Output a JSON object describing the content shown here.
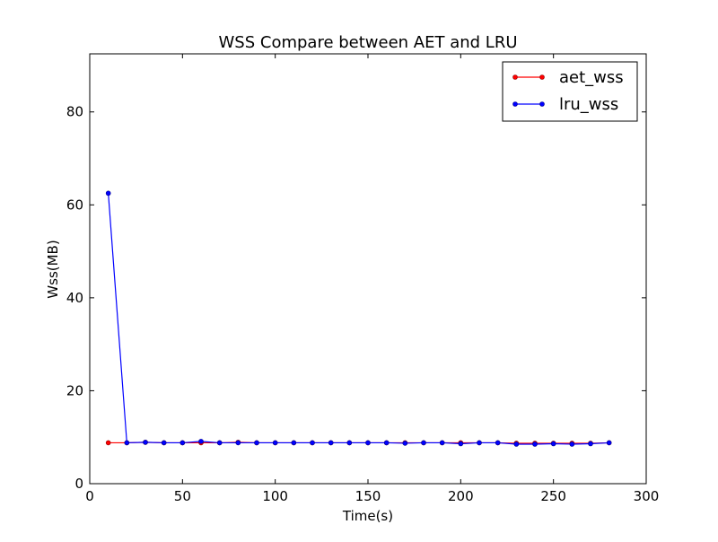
{
  "chart_data": {
    "type": "line",
    "title": "WSS Compare between AET and LRU",
    "xlabel": "Time(s)",
    "ylabel": "Wss(MB)",
    "xlim": [
      0,
      300
    ],
    "ylim": [
      0,
      92.5
    ],
    "xticks": [
      0,
      50,
      100,
      150,
      200,
      250,
      300
    ],
    "yticks": [
      0,
      20,
      40,
      60,
      80
    ],
    "xtick_labels": [
      "0",
      "50",
      "100",
      "150",
      "200",
      "250",
      "300"
    ],
    "ytick_labels": [
      "0",
      "20",
      "40",
      "60",
      "80"
    ],
    "grid": false,
    "legend_position": "top-right",
    "x": [
      10,
      20,
      30,
      40,
      50,
      60,
      70,
      80,
      90,
      100,
      110,
      120,
      130,
      140,
      150,
      160,
      170,
      180,
      190,
      200,
      210,
      220,
      230,
      240,
      250,
      260,
      270,
      280
    ],
    "series": [
      {
        "name": "aet_wss",
        "color": "#ff0000",
        "values": [
          8.8,
          8.8,
          8.9,
          8.8,
          8.8,
          8.8,
          8.8,
          8.9,
          8.8,
          8.8,
          8.8,
          8.8,
          8.8,
          8.8,
          8.8,
          8.8,
          8.8,
          8.8,
          8.8,
          8.8,
          8.8,
          8.8,
          8.7,
          8.7,
          8.7,
          8.7,
          8.7,
          8.8
        ]
      },
      {
        "name": "lru_wss",
        "color": "#0000ff",
        "values": [
          62.5,
          8.8,
          8.9,
          8.8,
          8.8,
          9.1,
          8.8,
          8.8,
          8.8,
          8.8,
          8.8,
          8.8,
          8.8,
          8.8,
          8.8,
          8.8,
          8.7,
          8.8,
          8.8,
          8.6,
          8.8,
          8.8,
          8.5,
          8.5,
          8.6,
          8.5,
          8.6,
          8.8
        ]
      }
    ]
  }
}
